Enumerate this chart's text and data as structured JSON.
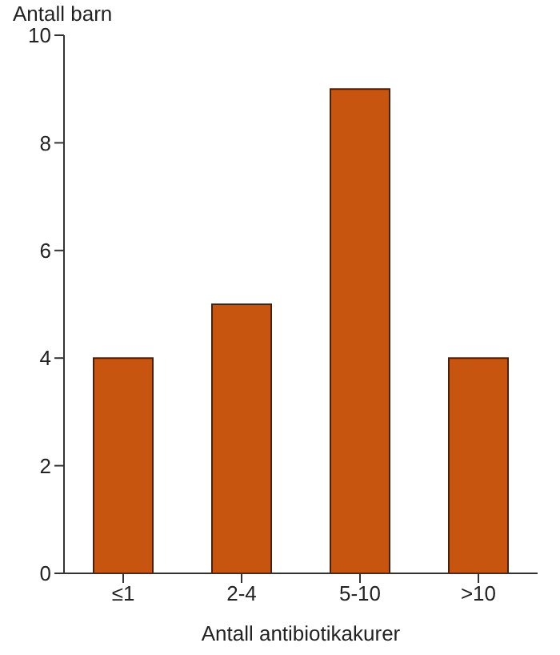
{
  "chart_data": {
    "type": "bar",
    "ylabel": "Antall barn",
    "xlabel": "Antall antibiotikakurer",
    "categories": [
      "≤1",
      "2-4",
      "5-10",
      ">10"
    ],
    "values": [
      4,
      5,
      9,
      4
    ],
    "color": "#c8550f",
    "ylim": [
      0,
      10
    ],
    "yticks": [
      0,
      2,
      4,
      6,
      8,
      10
    ],
    "grid": false
  }
}
